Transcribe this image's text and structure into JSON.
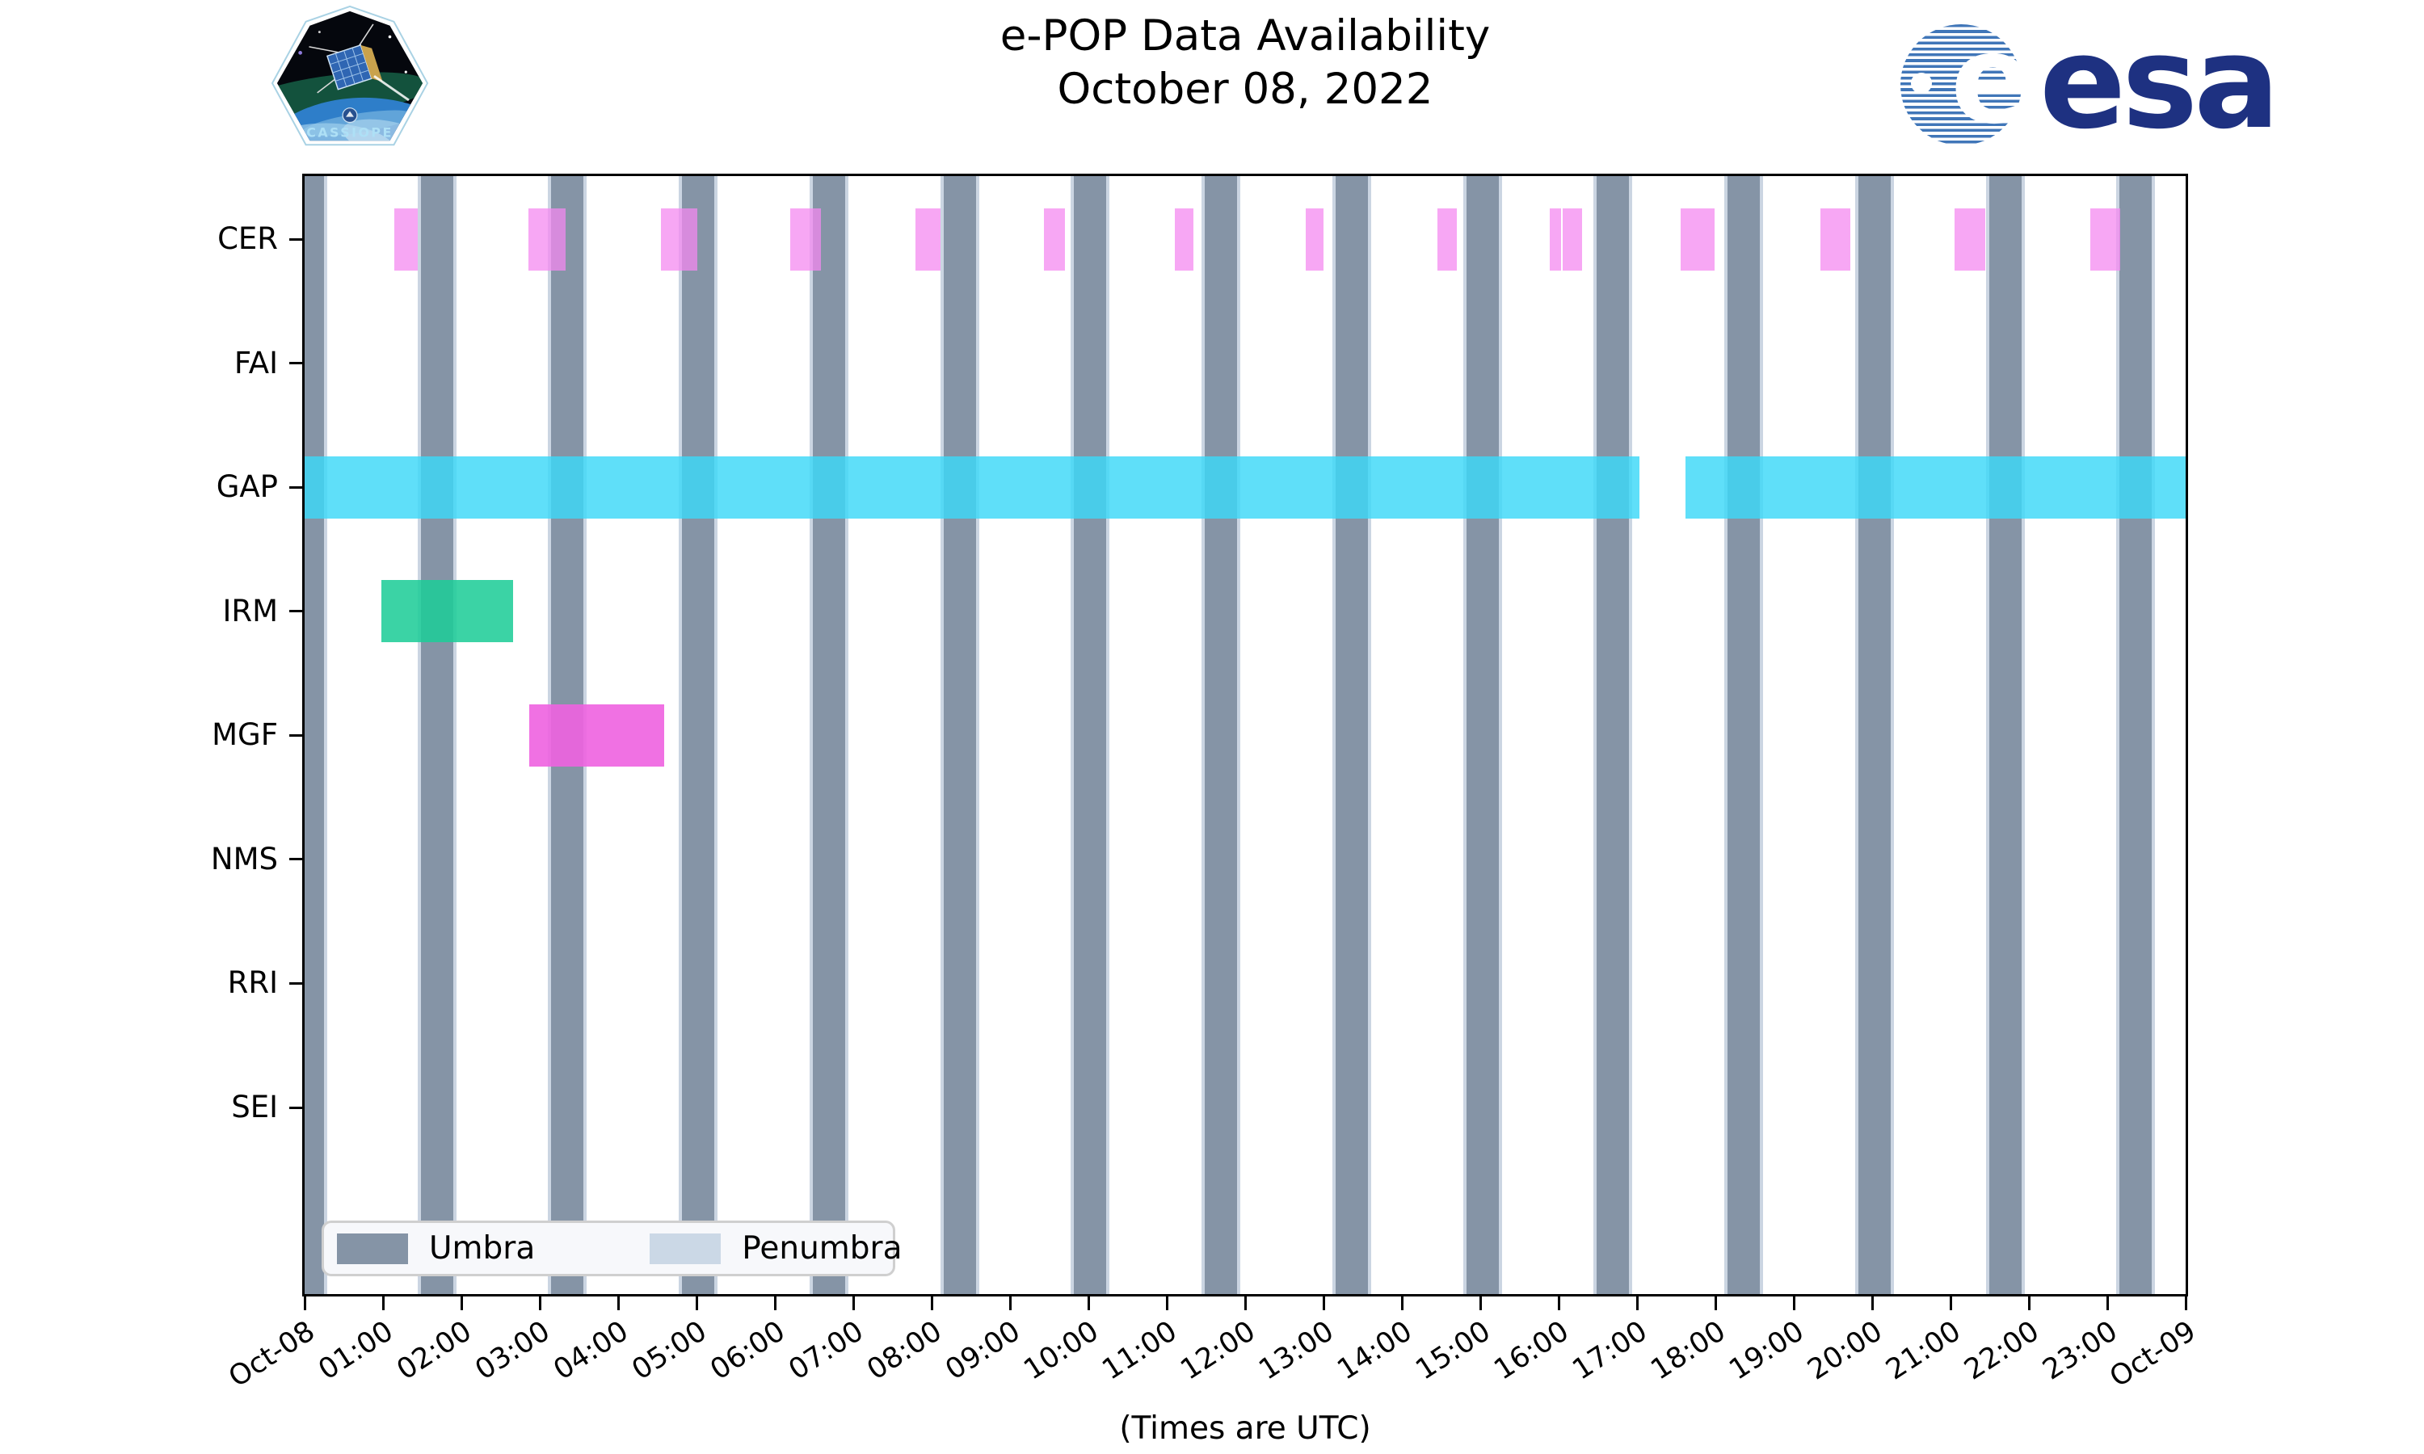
{
  "header": {
    "title": "e-POP Data Availability",
    "subtitle": "October 08, 2022"
  },
  "logos": {
    "cassiope_text": "CASSIOPE",
    "esa_text": "esa",
    "esa_e": "e"
  },
  "legend": {
    "position": "lower left",
    "items": [
      {
        "label": "Umbra",
        "color": "#8594A6"
      },
      {
        "label": "Penumbra",
        "color": "#CBD8E6"
      }
    ]
  },
  "chart_data": {
    "type": "bar",
    "variant": "gantt-availability",
    "title": "e-POP Data Availability",
    "subtitle": "October 08, 2022",
    "xlabel": "(Times are UTC)",
    "ylabel": "",
    "grid": false,
    "categories": [
      "CER",
      "FAI",
      "GAP",
      "IRM",
      "MGF",
      "NMS",
      "RRI",
      "SEI"
    ],
    "x_ticks": [
      "Oct-08",
      "01:00",
      "02:00",
      "03:00",
      "04:00",
      "05:00",
      "06:00",
      "07:00",
      "08:00",
      "09:00",
      "10:00",
      "11:00",
      "12:00",
      "13:00",
      "14:00",
      "15:00",
      "16:00",
      "17:00",
      "18:00",
      "19:00",
      "20:00",
      "21:00",
      "22:00",
      "23:00",
      "Oct-09"
    ],
    "xlim_hours": [
      0,
      24
    ],
    "series_colors": {
      "CER": "rgba(244,136,240,0.74)",
      "GAP": "rgba(60,216,248,0.82)",
      "IRM": "rgba(30,205,152,0.87)",
      "MGF": "rgba(238,98,224,0.90)"
    },
    "bars": [
      {
        "instrument": "CER",
        "start": "01:09",
        "end": "01:27",
        "start_h": 1.14,
        "end_h": 1.44
      },
      {
        "instrument": "CER",
        "start": "02:51",
        "end": "03:20",
        "start_h": 2.86,
        "end_h": 3.33
      },
      {
        "instrument": "CER",
        "start": "04:33",
        "end": "05:01",
        "start_h": 4.55,
        "end_h": 5.01
      },
      {
        "instrument": "CER",
        "start": "06:12",
        "end": "06:35",
        "start_h": 6.2,
        "end_h": 6.59
      },
      {
        "instrument": "CER",
        "start": "07:48",
        "end": "08:07",
        "start_h": 7.79,
        "end_h": 8.11
      },
      {
        "instrument": "CER",
        "start": "09:26",
        "end": "09:42",
        "start_h": 9.43,
        "end_h": 9.7
      },
      {
        "instrument": "CER",
        "start": "11:06",
        "end": "11:20",
        "start_h": 11.1,
        "end_h": 11.34
      },
      {
        "instrument": "CER",
        "start": "12:46",
        "end": "13:00",
        "start_h": 12.77,
        "end_h": 13.0
      },
      {
        "instrument": "CER",
        "start": "14:27",
        "end": "14:42",
        "start_h": 14.45,
        "end_h": 14.7
      },
      {
        "instrument": "CER",
        "start": "15:53",
        "end": "16:02",
        "start_h": 15.89,
        "end_h": 16.03
      },
      {
        "instrument": "CER",
        "start": "16:02",
        "end": "16:18",
        "start_h": 16.05,
        "end_h": 16.3
      },
      {
        "instrument": "CER",
        "start": "17:34",
        "end": "17:59",
        "start_h": 17.56,
        "end_h": 17.99
      },
      {
        "instrument": "CER",
        "start": "19:20",
        "end": "19:43",
        "start_h": 19.34,
        "end_h": 19.72
      },
      {
        "instrument": "CER",
        "start": "21:03",
        "end": "21:26",
        "start_h": 21.05,
        "end_h": 21.44
      },
      {
        "instrument": "CER",
        "start": "22:47",
        "end": "23:10",
        "start_h": 22.78,
        "end_h": 23.17
      },
      {
        "instrument": "GAP",
        "start": "00:00",
        "end": "17:02",
        "start_h": 0.0,
        "end_h": 17.03
      },
      {
        "instrument": "GAP",
        "start": "17:37",
        "end": "24:00",
        "start_h": 17.62,
        "end_h": 24.0
      },
      {
        "instrument": "IRM",
        "start": "00:59",
        "end": "02:40",
        "start_h": 0.98,
        "end_h": 2.66
      },
      {
        "instrument": "MGF",
        "start": "02:52",
        "end": "04:35",
        "start_h": 2.87,
        "end_h": 4.59
      }
    ],
    "umbra_intervals_h": [
      [
        0.0,
        0.25
      ],
      [
        1.48,
        1.9
      ],
      [
        3.14,
        3.56
      ],
      [
        4.81,
        5.23
      ],
      [
        6.48,
        6.9
      ],
      [
        8.15,
        8.57
      ],
      [
        9.81,
        10.23
      ],
      [
        11.48,
        11.9
      ],
      [
        13.15,
        13.57
      ],
      [
        14.82,
        15.24
      ],
      [
        16.48,
        16.9
      ],
      [
        18.15,
        18.57
      ],
      [
        19.82,
        20.24
      ],
      [
        21.49,
        21.91
      ],
      [
        23.15,
        23.57
      ]
    ],
    "penumbra_edge_h": 0.035,
    "umbra_color": "#8594A6",
    "penumbra_color": "#CBD5E2"
  }
}
